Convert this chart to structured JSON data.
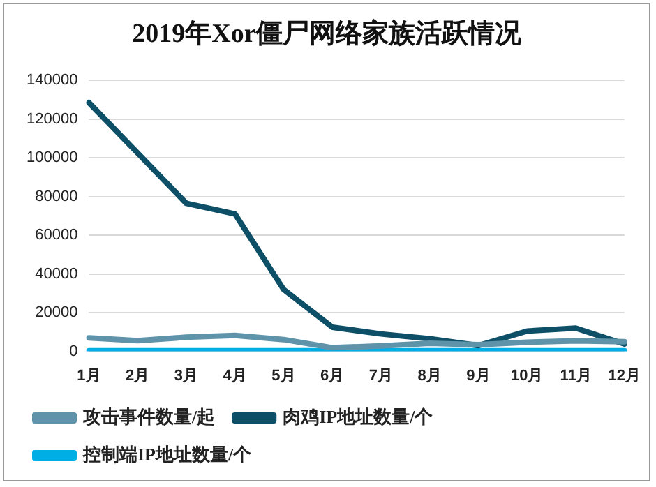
{
  "chart_data": {
    "type": "line",
    "title": "2019年Xor僵尸网络家族活跃情况",
    "categories": [
      "1月",
      "2月",
      "3月",
      "4月",
      "5月",
      "6月",
      "7月",
      "8月",
      "9月",
      "10月",
      "11月",
      "12月"
    ],
    "series": [
      {
        "name": "攻击事件数量/起",
        "color": "#5f93aa",
        "values": [
          7000,
          5500,
          7300,
          8200,
          6100,
          1900,
          2800,
          4200,
          3500,
          4700,
          5400,
          5000
        ]
      },
      {
        "name": "肉鸡IP地址数量/个",
        "color": "#0d4f66",
        "values": [
          128500,
          102500,
          76500,
          71000,
          32000,
          12500,
          9000,
          6500,
          3000,
          10500,
          12000,
          3800
        ]
      },
      {
        "name": "控制端IP地址数量/个",
        "color": "#00aee6",
        "values": [
          300,
          300,
          300,
          300,
          300,
          300,
          300,
          300,
          300,
          300,
          300,
          300
        ]
      }
    ],
    "ylim": [
      0,
      140000
    ],
    "yticks": [
      0,
      20000,
      40000,
      60000,
      80000,
      100000,
      120000,
      140000
    ],
    "grid": "y",
    "legend": "bottom",
    "marker": "none",
    "line_style": "solid"
  }
}
